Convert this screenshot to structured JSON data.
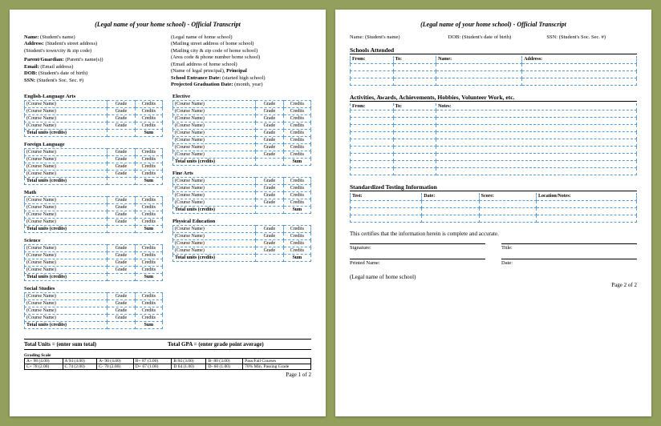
{
  "title": "(Legal name of your home school) - Official Transcript",
  "page1": {
    "left": [
      "<b>Name:</b> (Student's name)",
      "<b>Address:</b> (Student's street address)",
      "(Student's town/city & zip code)",
      "",
      "<b>Parent/Guardian:</b> (Parent's name(s))",
      "<b>Email:</b> (Email address)",
      "<b>DOB:</b> (Student's date of birth)",
      "<b>SSN:</b> (Student's Soc. Sec. #)"
    ],
    "right": [
      "(Legal name of home school)",
      "(Mailing street address of home school)",
      "(Mailing city & zip code of home school)",
      "(Area code & phone number home school)",
      "(Email address of home school)",
      "(Name of legal principal), <b>Principal</b>",
      "<b>School Entrance Date:</b> (started high school)",
      "<b>Projected Graduation Date:</b> (month, year)"
    ],
    "col1": [
      "English-Language Arts",
      "Foreign Language",
      "Math",
      "Science",
      "Social Studies"
    ],
    "col2": [
      "Elective",
      "Fine Arts",
      "Physical Education"
    ],
    "course_row": {
      "name": "(Course Name)",
      "grade": "Grade",
      "credits": "Credits"
    },
    "total_row": {
      "label": "Total units (credits)",
      "sum": "Sum"
    },
    "rows_per_subject": {
      "default": 4,
      "Elective": 8
    },
    "totals": {
      "units": "Total Units = (enter sum total)",
      "gpa": "Total GPA = (enter grade point average)"
    },
    "grading": {
      "title": "Grading Scale",
      "cells": [
        [
          "A+  98  (4.00)",
          "A  94  (4.00)",
          "A-  90  (4.00)",
          "B+  87  (3.00)",
          "B  84  (3.00)",
          "B-  80  (3.00)",
          "Pass/Fail  Courses"
        ],
        [
          "C+  78  (2.00)",
          "C  74  (2.00)",
          "C-  70  (2.00)",
          "D+  67  (1.00)",
          "D  64  (1.00)",
          "D-  60  (1.00)",
          "70% Min.  Passing Grade"
        ]
      ]
    },
    "pagenum": "Page 1 of 2"
  },
  "page2": {
    "hdr": {
      "name": "Name: (Student's name)",
      "dob": "DOB: (Student's date of birth)",
      "ssn": "SSN: (Student's Soc. Sec. #)"
    },
    "schools": {
      "title": "Schools Attended",
      "heads": [
        "From:",
        "To:",
        "Name:",
        "Address:"
      ],
      "rows": 3
    },
    "activities": {
      "title": "Activities, Awards, Achievements, Hobbies, Volunteer Work, etc.",
      "heads": [
        "From:",
        "To:",
        "Notes:"
      ],
      "rows": 9
    },
    "testing": {
      "title": "Standardized Testing Information",
      "heads": [
        "Test:",
        "Date:",
        "Score:",
        "Location/Notes:"
      ],
      "rows": 3
    },
    "cert": "This certifies that the information herein is complete and accurate.",
    "sigs": [
      [
        "Signature:",
        "Title:"
      ],
      [
        "Printed Name:",
        "Date:"
      ]
    ],
    "legal": "(Legal name of home school)",
    "pagenum": "Page 2 of 2"
  },
  "style": {
    "dash_border_color": "#5b9bd5",
    "background": "#93a05c",
    "page_bg": "#ffffff"
  }
}
